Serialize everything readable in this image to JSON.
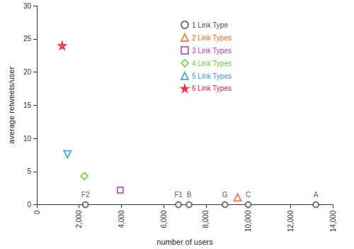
{
  "chart_data": {
    "type": "scatter",
    "x_label": "number of users",
    "y_label": "average retweets/user",
    "xlim": [
      0,
      14000
    ],
    "xticks": [
      0,
      {
        "value": 2000,
        "label": "2,000"
      },
      {
        "value": 4000,
        "label": "4,000"
      },
      {
        "value": 6000,
        "label": "6,000"
      },
      {
        "value": 8000,
        "label": "8,000"
      },
      {
        "value": 10000,
        "label": "10,000"
      },
      {
        "value": 12000,
        "label": "12,000"
      },
      {
        "value": 14000,
        "label": "14,000"
      }
    ],
    "ylim": [
      0,
      30
    ],
    "yticks": [
      0,
      5,
      10,
      15,
      20,
      25,
      30
    ],
    "grid": false,
    "legend": "top",
    "series": [
      {
        "name": "1 Link Type",
        "color": "#555555",
        "marker": "circle",
        "x": [
          2300,
          6700,
          7200,
          8900,
          10000,
          13200
        ],
        "values": [
          0,
          0,
          0,
          0,
          0,
          0
        ],
        "labels": [
          "F2",
          "F1",
          "B",
          "G",
          "C",
          "A"
        ]
      },
      {
        "name": "2 Link Types",
        "color": "#e8692a",
        "marker": "triangle",
        "x": [
          9500
        ],
        "values": [
          1.1
        ]
      },
      {
        "name": "3 Link Types",
        "color": "#b040c0",
        "marker": "square",
        "x": [
          3950
        ],
        "values": [
          2.2
        ]
      },
      {
        "name": "4 Link Types",
        "color": "#66cc33",
        "marker": "diamond",
        "x": [
          2250
        ],
        "values": [
          4.3
        ]
      },
      {
        "name": "5 Link Types",
        "color": "#3399dd",
        "marker": "triangle-down",
        "x": [
          1450
        ],
        "values": [
          7.6
        ]
      },
      {
        "name": "6 Link Types",
        "color": "#e8203c",
        "marker": "star",
        "x": [
          1200
        ],
        "values": [
          24
        ]
      }
    ]
  }
}
